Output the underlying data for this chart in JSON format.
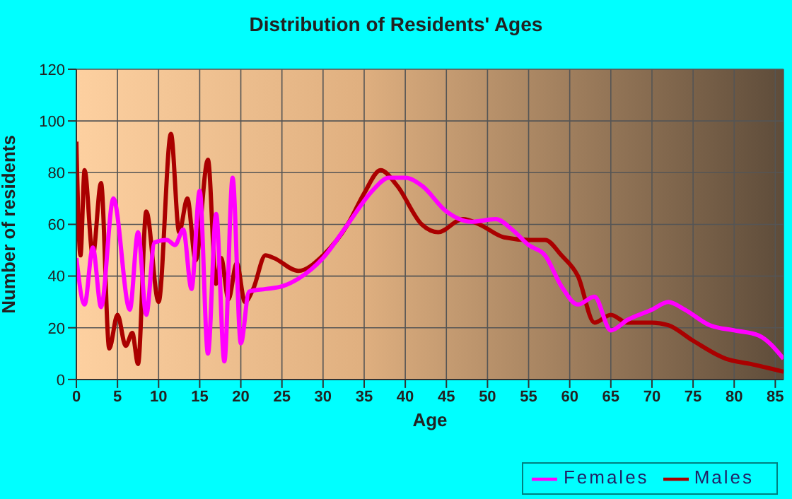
{
  "chart_data": {
    "type": "line",
    "title": "Distribution of Residents' Ages",
    "xlabel": "Age",
    "ylabel": "Number of residents",
    "xlim": [
      0,
      86
    ],
    "xticks": [
      0,
      5,
      10,
      15,
      20,
      25,
      30,
      35,
      40,
      45,
      50,
      55,
      60,
      65,
      70,
      75,
      80,
      85
    ],
    "ylim": [
      0,
      120
    ],
    "yticks": [
      0,
      20,
      40,
      60,
      80,
      100,
      120
    ],
    "grid": true,
    "legend": "bottom right",
    "marker": "none",
    "line_style": "solid",
    "series": [
      {
        "name": "Males",
        "color": "#aa0000",
        "x": [
          0,
          0.5,
          1,
          2,
          3,
          4,
          5,
          6,
          6.8,
          7.5,
          8.5,
          10,
          11.5,
          12.5,
          13.5,
          14.5,
          16,
          17,
          17.6,
          18.5,
          19.5,
          20.5,
          21.5,
          23,
          24,
          27,
          30,
          33,
          35,
          37,
          39,
          42,
          44,
          47,
          49,
          52,
          55,
          57,
          59,
          61,
          63,
          65,
          67,
          70,
          72,
          75,
          79,
          82,
          86
        ],
        "values": [
          92,
          48,
          81,
          48,
          76,
          12,
          25,
          13,
          18,
          6,
          65,
          30,
          95,
          57,
          70,
          46,
          85,
          37,
          47,
          31,
          45,
          30,
          35,
          48,
          47,
          42,
          48,
          60,
          72,
          81,
          75,
          60,
          57,
          62,
          60,
          55,
          54,
          54,
          48,
          40,
          22,
          25,
          22,
          22,
          21,
          15,
          8,
          6,
          3
        ]
      },
      {
        "name": "Females",
        "color": "#ff00ff",
        "x": [
          0,
          1,
          2,
          3,
          4.5,
          6.5,
          7.5,
          8.5,
          9.5,
          11,
          12,
          13,
          14,
          15,
          16,
          17,
          18,
          19,
          20,
          21,
          23,
          25,
          27,
          30,
          33,
          36,
          38,
          40,
          42,
          45,
          48,
          51,
          53,
          55,
          57,
          59,
          61,
          63,
          65,
          67,
          70,
          72,
          74,
          77,
          80,
          83,
          86
        ],
        "values": [
          47,
          29,
          51,
          28,
          70,
          27,
          57,
          25,
          53,
          54,
          52,
          58,
          35,
          73,
          10,
          64,
          7,
          78,
          14,
          34,
          35,
          36,
          39,
          47,
          60,
          73,
          78,
          78,
          75,
          65,
          61,
          62,
          58,
          52,
          48,
          36,
          29,
          32,
          19,
          23,
          27,
          30,
          27,
          21,
          19,
          17,
          8
        ]
      }
    ]
  }
}
